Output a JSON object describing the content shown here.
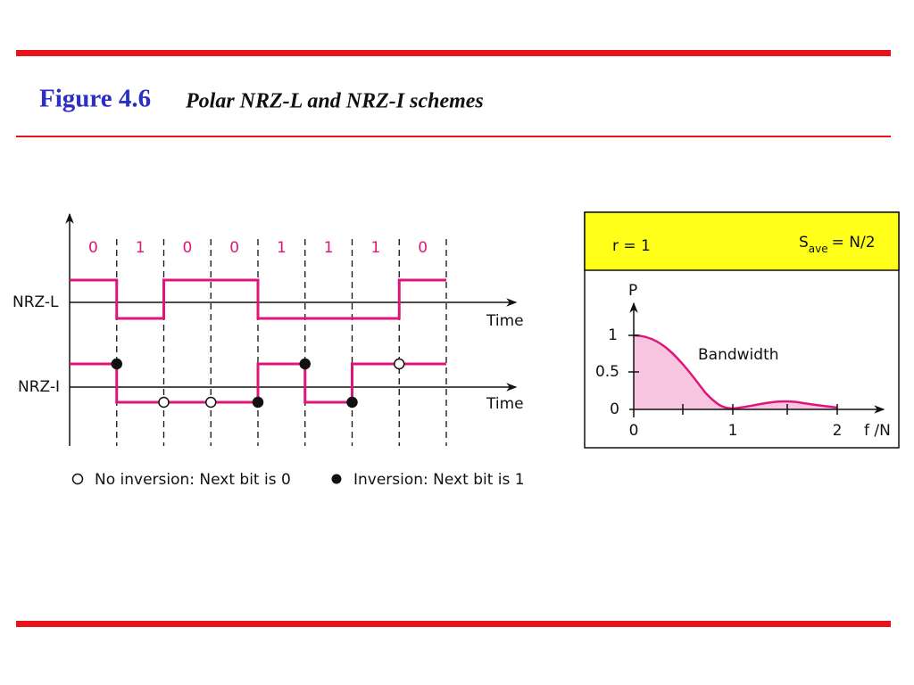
{
  "header": {
    "figure": "Figure 4.6",
    "caption": "Polar NRZ-L and NRZ-I schemes"
  },
  "signals": {
    "bits": [
      "0",
      "1",
      "0",
      "0",
      "1",
      "1",
      "1",
      "0"
    ],
    "nrz_l": "NRZ-L",
    "nrz_i": "NRZ-I",
    "time_axis": "Time"
  },
  "legend": {
    "no_inversion": "No inversion: Next bit is 0",
    "inversion": "Inversion: Next bit is 1"
  },
  "spectrum": {
    "ratio": "r = 1",
    "s": "S",
    "s_sub": "ave",
    "s_rhs": "= N/2",
    "y_axis": "P",
    "x_axis": "f /N",
    "annotation": "Bandwidth",
    "yticks": [
      "1",
      "0.5",
      "0"
    ],
    "xticks": [
      "0",
      "1",
      "2"
    ]
  }
}
